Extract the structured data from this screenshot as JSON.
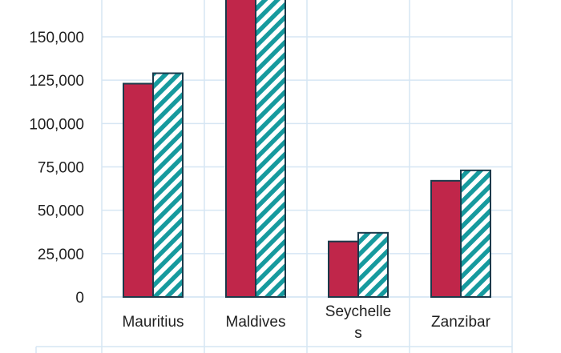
{
  "chart_data": {
    "type": "bar",
    "categories": [
      "Mauritius",
      "Maldives",
      "Seychelles",
      "Zanzibar"
    ],
    "category_label_lines": [
      [
        "Mauritius"
      ],
      [
        "Maldives"
      ],
      [
        "Seychelle",
        "s"
      ],
      [
        "Zanzibar"
      ]
    ],
    "series": [
      {
        "values": [
          123000,
          175000,
          32000,
          67000
        ],
        "color": "#c0264a",
        "pattern": "solid"
      },
      {
        "values": [
          129000,
          175000,
          37000,
          73000
        ],
        "color": "#169a9e",
        "pattern": "diagonal-stripes"
      }
    ],
    "y_ticks": [
      0,
      25000,
      50000,
      75000,
      100000,
      125000,
      150000
    ],
    "y_tick_labels": [
      "0",
      "25,000",
      "50,000",
      "75,000",
      "100,000",
      "125,000",
      "150,000"
    ],
    "ylim": [
      0,
      170000
    ],
    "grid": true,
    "colors": {
      "grid": "#d6e6f4",
      "bar_outline": "#1b3a4b",
      "stripe_background": "#ffffff"
    }
  }
}
